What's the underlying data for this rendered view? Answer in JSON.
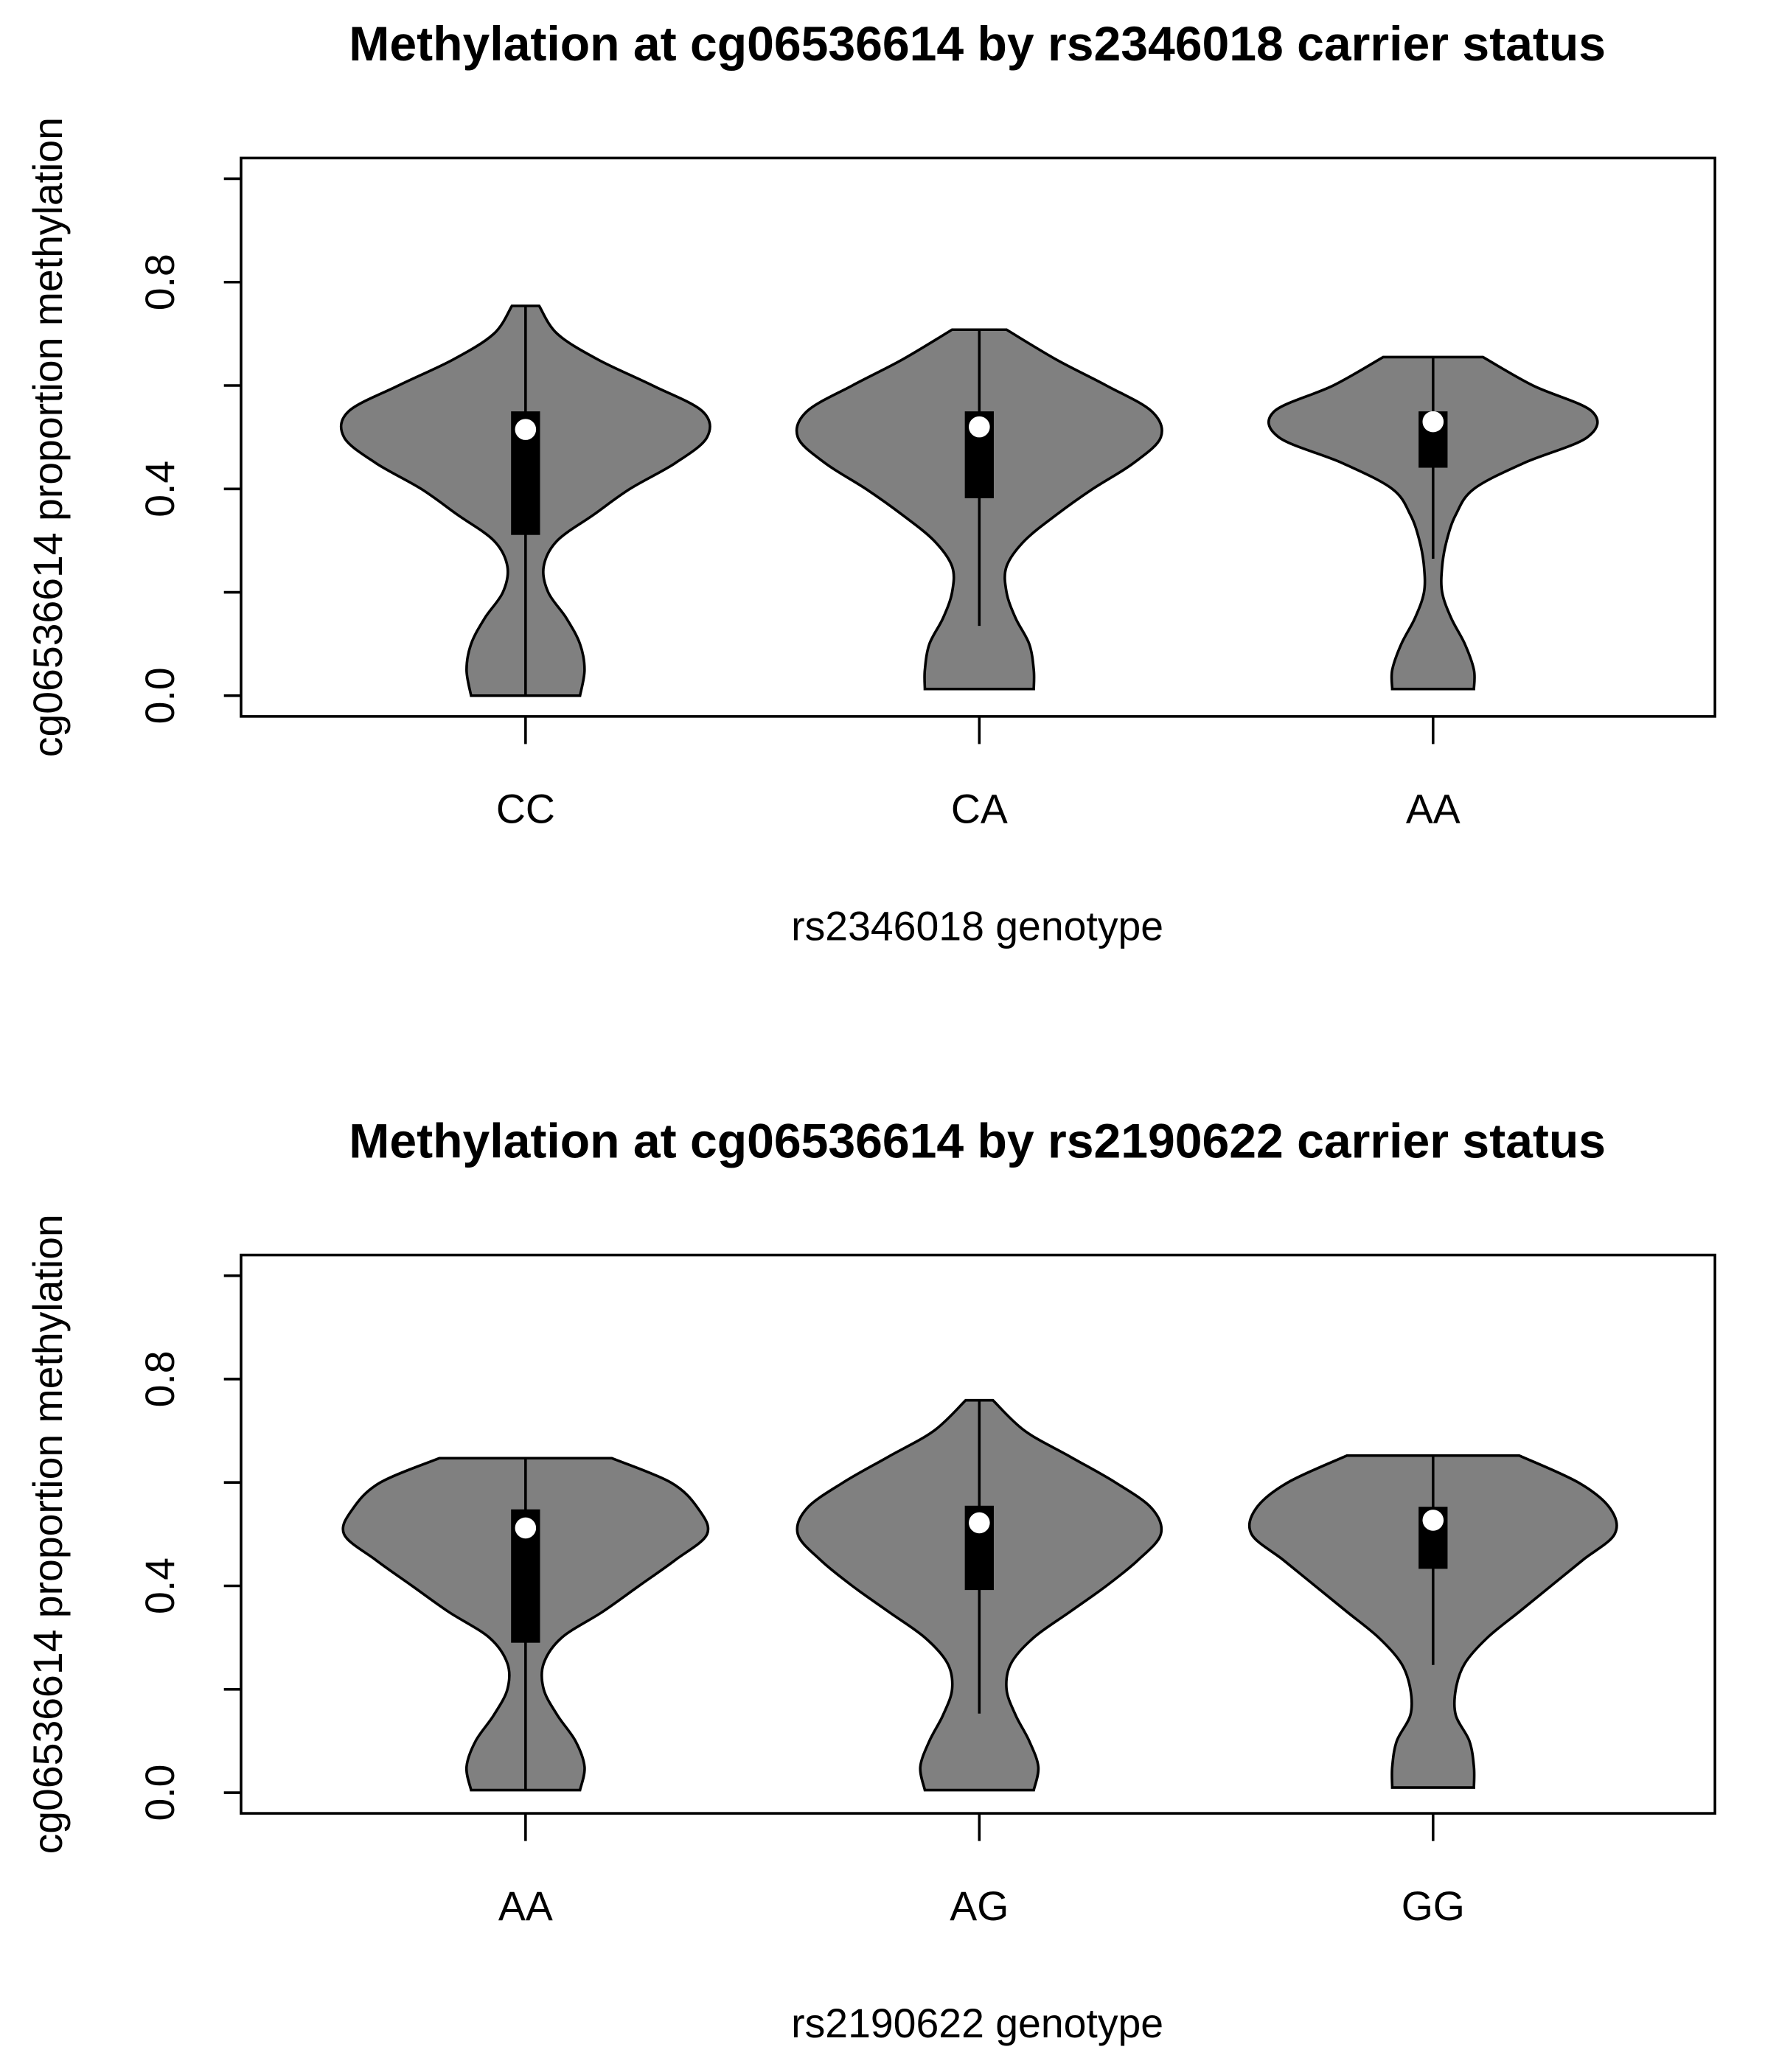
{
  "chart_data": [
    {
      "type": "violin",
      "title": "Methylation at cg06536614 by rs2346018 carrier status",
      "xlabel": "rs2346018 genotype",
      "ylabel": "cg06536614 proportion methylation",
      "color": "#808080",
      "categories": [
        "CC",
        "CA",
        "AA"
      ],
      "ylim": [
        -0.04,
        1.04
      ],
      "yticks": [
        {
          "value": 0,
          "label": "0.0"
        },
        {
          "value": 0.2,
          "label": null
        },
        {
          "value": 0.4,
          "label": "0.4"
        },
        {
          "value": 0.6,
          "label": null
        },
        {
          "value": 0.8,
          "label": "0.8"
        },
        {
          "value": 1.0,
          "label": null
        }
      ],
      "groups": [
        {
          "whisker_low": 0,
          "q1": 0.311,
          "median": 0.515,
          "q3": 0.55,
          "whisker_high": 0.754,
          "violin": {
            "y": [
              0,
              0.05,
              0.1,
              0.15,
              0.2,
              0.25,
              0.3,
              0.35,
              0.4,
              0.45,
              0.5,
              0.55,
              0.6,
              0.65,
              0.7,
              0.754
            ],
            "width": [
              0.12,
              0.13,
              0.12,
              0.09,
              0.05,
              0.04,
              0.07,
              0.15,
              0.23,
              0.33,
              0.4,
              0.39,
              0.28,
              0.16,
              0.07,
              0.03
            ]
          }
        },
        {
          "whisker_low": 0.135,
          "q1": 0.382,
          "median": 0.52,
          "q3": 0.55,
          "whisker_high": 0.708,
          "violin": {
            "y": [
              0.013,
              0.05,
              0.1,
              0.15,
              0.2,
              0.25,
              0.3,
              0.35,
              0.4,
              0.45,
              0.5,
              0.55,
              0.6,
              0.65,
              0.708
            ],
            "width": [
              0.12,
              0.12,
              0.11,
              0.08,
              0.06,
              0.06,
              0.1,
              0.17,
              0.25,
              0.34,
              0.4,
              0.38,
              0.28,
              0.17,
              0.06
            ]
          }
        },
        {
          "whisker_low": 0.265,
          "q1": 0.441,
          "median": 0.53,
          "q3": 0.55,
          "whisker_high": 0.655,
          "violin": {
            "y": [
              0.013,
              0.05,
              0.1,
              0.15,
              0.2,
              0.25,
              0.3,
              0.35,
              0.4,
              0.45,
              0.5,
              0.55,
              0.6,
              0.655
            ],
            "width": [
              0.09,
              0.09,
              0.07,
              0.04,
              0.02,
              0.02,
              0.03,
              0.05,
              0.09,
              0.2,
              0.34,
              0.35,
              0.22,
              0.11
            ]
          }
        }
      ]
    },
    {
      "type": "violin",
      "title": "Methylation at cg06536614 by rs2190622 carrier status",
      "xlabel": "rs2190622 genotype",
      "ylabel": "cg06536614 proportion methylation",
      "color": "#808080",
      "categories": [
        "AA",
        "AG",
        "GG"
      ],
      "ylim": [
        -0.04,
        1.04
      ],
      "yticks": [
        {
          "value": 0,
          "label": "0.0"
        },
        {
          "value": 0.2,
          "label": null
        },
        {
          "value": 0.4,
          "label": "0.4"
        },
        {
          "value": 0.6,
          "label": null
        },
        {
          "value": 0.8,
          "label": "0.8"
        },
        {
          "value": 1.0,
          "label": null
        }
      ],
      "groups": [
        {
          "whisker_low": 0.005,
          "q1": 0.29,
          "median": 0.512,
          "q3": 0.548,
          "whisker_high": 0.647,
          "violin": {
            "y": [
              0.005,
              0.05,
              0.1,
              0.15,
              0.2,
              0.25,
              0.3,
              0.35,
              0.4,
              0.45,
              0.5,
              0.55,
              0.6,
              0.647
            ],
            "width": [
              0.12,
              0.13,
              0.11,
              0.07,
              0.04,
              0.04,
              0.08,
              0.17,
              0.25,
              0.33,
              0.4,
              0.38,
              0.32,
              0.19
            ]
          }
        },
        {
          "whisker_low": 0.153,
          "q1": 0.392,
          "median": 0.522,
          "q3": 0.555,
          "whisker_high": 0.759,
          "violin": {
            "y": [
              0.005,
              0.05,
              0.1,
              0.15,
              0.2,
              0.25,
              0.3,
              0.35,
              0.4,
              0.45,
              0.5,
              0.55,
              0.6,
              0.65,
              0.7,
              0.759
            ],
            "width": [
              0.12,
              0.13,
              0.11,
              0.08,
              0.06,
              0.07,
              0.12,
              0.2,
              0.28,
              0.35,
              0.4,
              0.38,
              0.3,
              0.2,
              0.1,
              0.03
            ]
          }
        },
        {
          "whisker_low": 0.247,
          "q1": 0.433,
          "median": 0.527,
          "q3": 0.553,
          "whisker_high": 0.652,
          "violin": {
            "y": [
              0.01,
              0.05,
              0.1,
              0.15,
              0.2,
              0.25,
              0.3,
              0.35,
              0.4,
              0.45,
              0.5,
              0.55,
              0.6,
              0.652
            ],
            "width": [
              0.09,
              0.09,
              0.08,
              0.05,
              0.05,
              0.07,
              0.12,
              0.19,
              0.26,
              0.33,
              0.4,
              0.39,
              0.32,
              0.19
            ]
          }
        }
      ]
    }
  ]
}
